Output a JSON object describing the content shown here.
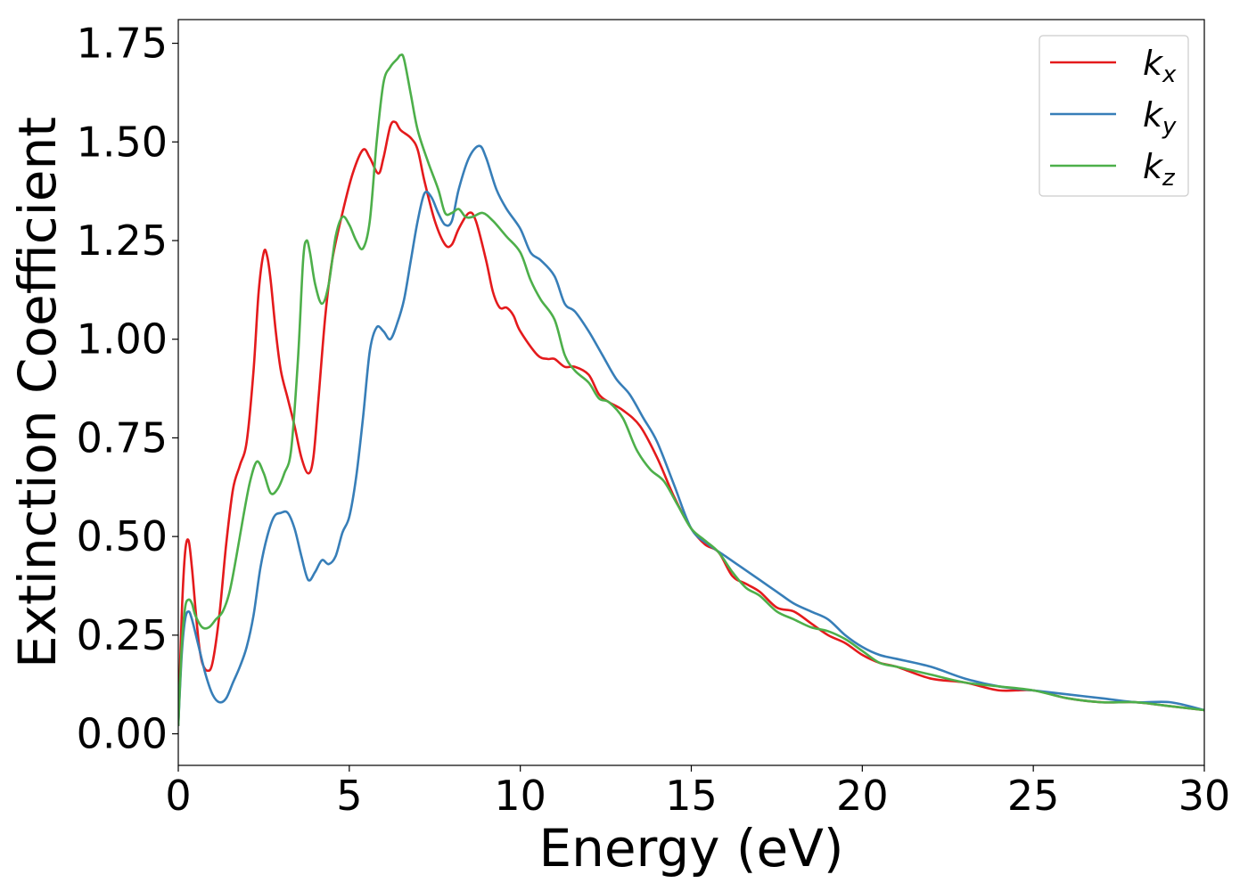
{
  "chart_data": {
    "type": "line",
    "title": "",
    "xlabel": "Energy (eV)",
    "ylabel": "Extinction Coefficient",
    "xlim": [
      0,
      30
    ],
    "ylim": [
      -0.08,
      1.81
    ],
    "xticks": [
      0,
      5,
      10,
      15,
      20,
      25,
      30
    ],
    "xtick_labels": [
      "0",
      "5",
      "10",
      "15",
      "20",
      "25",
      "30"
    ],
    "yticks": [
      0.0,
      0.25,
      0.5,
      0.75,
      1.0,
      1.25,
      1.5,
      1.75
    ],
    "ytick_labels": [
      "0.00",
      "0.25",
      "0.50",
      "0.75",
      "1.00",
      "1.25",
      "1.50",
      "1.75"
    ],
    "grid": false,
    "legend_position": "top-right",
    "series": [
      {
        "name": "k_x",
        "label_main": "k",
        "label_sub": "x",
        "color": "#e41a1c",
        "points": [
          [
            0.0,
            0.02
          ],
          [
            0.1,
            0.3
          ],
          [
            0.2,
            0.46
          ],
          [
            0.3,
            0.49
          ],
          [
            0.4,
            0.42
          ],
          [
            0.5,
            0.32
          ],
          [
            0.6,
            0.23
          ],
          [
            0.7,
            0.18
          ],
          [
            0.85,
            0.16
          ],
          [
            1.0,
            0.18
          ],
          [
            1.2,
            0.3
          ],
          [
            1.4,
            0.48
          ],
          [
            1.6,
            0.62
          ],
          [
            1.8,
            0.68
          ],
          [
            2.0,
            0.74
          ],
          [
            2.2,
            0.92
          ],
          [
            2.35,
            1.12
          ],
          [
            2.5,
            1.22
          ],
          [
            2.6,
            1.21
          ],
          [
            2.7,
            1.15
          ],
          [
            2.85,
            1.02
          ],
          [
            3.0,
            0.92
          ],
          [
            3.2,
            0.85
          ],
          [
            3.4,
            0.78
          ],
          [
            3.6,
            0.7
          ],
          [
            3.8,
            0.66
          ],
          [
            3.95,
            0.7
          ],
          [
            4.1,
            0.85
          ],
          [
            4.3,
            1.06
          ],
          [
            4.5,
            1.2
          ],
          [
            4.8,
            1.32
          ],
          [
            5.1,
            1.42
          ],
          [
            5.4,
            1.48
          ],
          [
            5.6,
            1.46
          ],
          [
            5.85,
            1.42
          ],
          [
            6.0,
            1.46
          ],
          [
            6.2,
            1.54
          ],
          [
            6.35,
            1.55
          ],
          [
            6.5,
            1.53
          ],
          [
            6.8,
            1.51
          ],
          [
            7.0,
            1.48
          ],
          [
            7.2,
            1.4
          ],
          [
            7.5,
            1.3
          ],
          [
            7.8,
            1.24
          ],
          [
            8.0,
            1.24
          ],
          [
            8.2,
            1.28
          ],
          [
            8.5,
            1.32
          ],
          [
            8.7,
            1.3
          ],
          [
            9.0,
            1.2
          ],
          [
            9.2,
            1.12
          ],
          [
            9.4,
            1.08
          ],
          [
            9.6,
            1.08
          ],
          [
            9.8,
            1.06
          ],
          [
            10.0,
            1.02
          ],
          [
            10.5,
            0.96
          ],
          [
            10.8,
            0.95
          ],
          [
            11.0,
            0.95
          ],
          [
            11.3,
            0.93
          ],
          [
            11.6,
            0.93
          ],
          [
            12.0,
            0.91
          ],
          [
            12.3,
            0.86
          ],
          [
            12.6,
            0.84
          ],
          [
            13.0,
            0.82
          ],
          [
            13.5,
            0.78
          ],
          [
            14.0,
            0.7
          ],
          [
            14.5,
            0.6
          ],
          [
            15.0,
            0.52
          ],
          [
            15.4,
            0.48
          ],
          [
            15.8,
            0.46
          ],
          [
            16.2,
            0.4
          ],
          [
            16.6,
            0.38
          ],
          [
            17.0,
            0.36
          ],
          [
            17.5,
            0.32
          ],
          [
            18.0,
            0.31
          ],
          [
            18.5,
            0.28
          ],
          [
            19.0,
            0.25
          ],
          [
            19.5,
            0.23
          ],
          [
            20.0,
            0.2
          ],
          [
            20.5,
            0.18
          ],
          [
            21.0,
            0.17
          ],
          [
            22.0,
            0.14
          ],
          [
            23.0,
            0.13
          ],
          [
            24.0,
            0.11
          ],
          [
            25.0,
            0.11
          ],
          [
            26.0,
            0.09
          ],
          [
            27.0,
            0.08
          ],
          [
            28.0,
            0.08
          ],
          [
            29.0,
            0.07
          ],
          [
            30.0,
            0.06
          ]
        ]
      },
      {
        "name": "k_y",
        "label_main": "k",
        "label_sub": "y",
        "color": "#377eb8",
        "points": [
          [
            0.0,
            0.02
          ],
          [
            0.1,
            0.2
          ],
          [
            0.2,
            0.29
          ],
          [
            0.3,
            0.31
          ],
          [
            0.4,
            0.29
          ],
          [
            0.6,
            0.22
          ],
          [
            0.8,
            0.15
          ],
          [
            1.0,
            0.1
          ],
          [
            1.2,
            0.08
          ],
          [
            1.4,
            0.09
          ],
          [
            1.6,
            0.13
          ],
          [
            1.8,
            0.17
          ],
          [
            2.0,
            0.22
          ],
          [
            2.2,
            0.3
          ],
          [
            2.4,
            0.42
          ],
          [
            2.6,
            0.5
          ],
          [
            2.8,
            0.55
          ],
          [
            3.0,
            0.56
          ],
          [
            3.2,
            0.56
          ],
          [
            3.4,
            0.52
          ],
          [
            3.6,
            0.45
          ],
          [
            3.8,
            0.39
          ],
          [
            4.0,
            0.41
          ],
          [
            4.2,
            0.44
          ],
          [
            4.4,
            0.43
          ],
          [
            4.6,
            0.45
          ],
          [
            4.8,
            0.51
          ],
          [
            5.0,
            0.55
          ],
          [
            5.2,
            0.65
          ],
          [
            5.4,
            0.8
          ],
          [
            5.6,
            0.97
          ],
          [
            5.8,
            1.03
          ],
          [
            6.0,
            1.02
          ],
          [
            6.2,
            1.0
          ],
          [
            6.4,
            1.04
          ],
          [
            6.6,
            1.1
          ],
          [
            6.8,
            1.2
          ],
          [
            7.0,
            1.3
          ],
          [
            7.2,
            1.37
          ],
          [
            7.4,
            1.36
          ],
          [
            7.6,
            1.32
          ],
          [
            7.8,
            1.29
          ],
          [
            8.0,
            1.3
          ],
          [
            8.2,
            1.38
          ],
          [
            8.5,
            1.46
          ],
          [
            8.8,
            1.49
          ],
          [
            9.0,
            1.46
          ],
          [
            9.3,
            1.38
          ],
          [
            9.6,
            1.33
          ],
          [
            10.0,
            1.28
          ],
          [
            10.3,
            1.22
          ],
          [
            10.6,
            1.2
          ],
          [
            11.0,
            1.16
          ],
          [
            11.3,
            1.09
          ],
          [
            11.6,
            1.07
          ],
          [
            12.0,
            1.02
          ],
          [
            12.4,
            0.96
          ],
          [
            12.8,
            0.9
          ],
          [
            13.2,
            0.86
          ],
          [
            13.6,
            0.8
          ],
          [
            14.0,
            0.74
          ],
          [
            14.5,
            0.63
          ],
          [
            15.0,
            0.52
          ],
          [
            15.5,
            0.48
          ],
          [
            16.0,
            0.45
          ],
          [
            16.5,
            0.42
          ],
          [
            17.0,
            0.39
          ],
          [
            17.5,
            0.36
          ],
          [
            18.0,
            0.33
          ],
          [
            18.5,
            0.31
          ],
          [
            19.0,
            0.29
          ],
          [
            19.5,
            0.25
          ],
          [
            20.0,
            0.22
          ],
          [
            20.5,
            0.2
          ],
          [
            21.0,
            0.19
          ],
          [
            22.0,
            0.17
          ],
          [
            23.0,
            0.14
          ],
          [
            24.0,
            0.12
          ],
          [
            25.0,
            0.11
          ],
          [
            26.0,
            0.1
          ],
          [
            27.0,
            0.09
          ],
          [
            28.0,
            0.08
          ],
          [
            29.0,
            0.08
          ],
          [
            30.0,
            0.06
          ]
        ]
      },
      {
        "name": "k_z",
        "label_main": "k",
        "label_sub": "z",
        "color": "#4daf4a",
        "points": [
          [
            0.0,
            0.02
          ],
          [
            0.1,
            0.22
          ],
          [
            0.2,
            0.32
          ],
          [
            0.3,
            0.34
          ],
          [
            0.4,
            0.33
          ],
          [
            0.5,
            0.3
          ],
          [
            0.7,
            0.27
          ],
          [
            0.9,
            0.27
          ],
          [
            1.1,
            0.29
          ],
          [
            1.3,
            0.31
          ],
          [
            1.5,
            0.36
          ],
          [
            1.7,
            0.45
          ],
          [
            1.9,
            0.55
          ],
          [
            2.1,
            0.64
          ],
          [
            2.3,
            0.69
          ],
          [
            2.5,
            0.66
          ],
          [
            2.7,
            0.61
          ],
          [
            2.9,
            0.62
          ],
          [
            3.1,
            0.66
          ],
          [
            3.3,
            0.72
          ],
          [
            3.5,
            0.95
          ],
          [
            3.65,
            1.2
          ],
          [
            3.75,
            1.25
          ],
          [
            3.85,
            1.22
          ],
          [
            4.0,
            1.14
          ],
          [
            4.2,
            1.09
          ],
          [
            4.4,
            1.14
          ],
          [
            4.6,
            1.26
          ],
          [
            4.8,
            1.31
          ],
          [
            5.0,
            1.29
          ],
          [
            5.2,
            1.25
          ],
          [
            5.4,
            1.23
          ],
          [
            5.6,
            1.3
          ],
          [
            5.8,
            1.5
          ],
          [
            6.0,
            1.65
          ],
          [
            6.2,
            1.69
          ],
          [
            6.4,
            1.71
          ],
          [
            6.5,
            1.72
          ],
          [
            6.6,
            1.71
          ],
          [
            6.8,
            1.62
          ],
          [
            7.0,
            1.53
          ],
          [
            7.3,
            1.45
          ],
          [
            7.6,
            1.38
          ],
          [
            7.8,
            1.32
          ],
          [
            8.0,
            1.32
          ],
          [
            8.2,
            1.33
          ],
          [
            8.4,
            1.31
          ],
          [
            8.6,
            1.31
          ],
          [
            8.9,
            1.32
          ],
          [
            9.2,
            1.3
          ],
          [
            9.6,
            1.26
          ],
          [
            10.0,
            1.22
          ],
          [
            10.3,
            1.15
          ],
          [
            10.6,
            1.1
          ],
          [
            11.0,
            1.05
          ],
          [
            11.3,
            0.96
          ],
          [
            11.6,
            0.92
          ],
          [
            12.0,
            0.89
          ],
          [
            12.3,
            0.85
          ],
          [
            12.6,
            0.84
          ],
          [
            13.0,
            0.8
          ],
          [
            13.4,
            0.72
          ],
          [
            13.8,
            0.67
          ],
          [
            14.2,
            0.64
          ],
          [
            14.6,
            0.58
          ],
          [
            15.0,
            0.52
          ],
          [
            15.4,
            0.49
          ],
          [
            15.8,
            0.46
          ],
          [
            16.2,
            0.41
          ],
          [
            16.6,
            0.37
          ],
          [
            17.0,
            0.35
          ],
          [
            17.5,
            0.31
          ],
          [
            18.0,
            0.29
          ],
          [
            18.5,
            0.27
          ],
          [
            19.0,
            0.26
          ],
          [
            19.5,
            0.24
          ],
          [
            20.0,
            0.21
          ],
          [
            20.5,
            0.18
          ],
          [
            21.0,
            0.17
          ],
          [
            22.0,
            0.15
          ],
          [
            23.0,
            0.13
          ],
          [
            24.0,
            0.12
          ],
          [
            25.0,
            0.11
          ],
          [
            26.0,
            0.09
          ],
          [
            27.0,
            0.08
          ],
          [
            28.0,
            0.08
          ],
          [
            29.0,
            0.07
          ],
          [
            30.0,
            0.06
          ]
        ]
      }
    ]
  }
}
